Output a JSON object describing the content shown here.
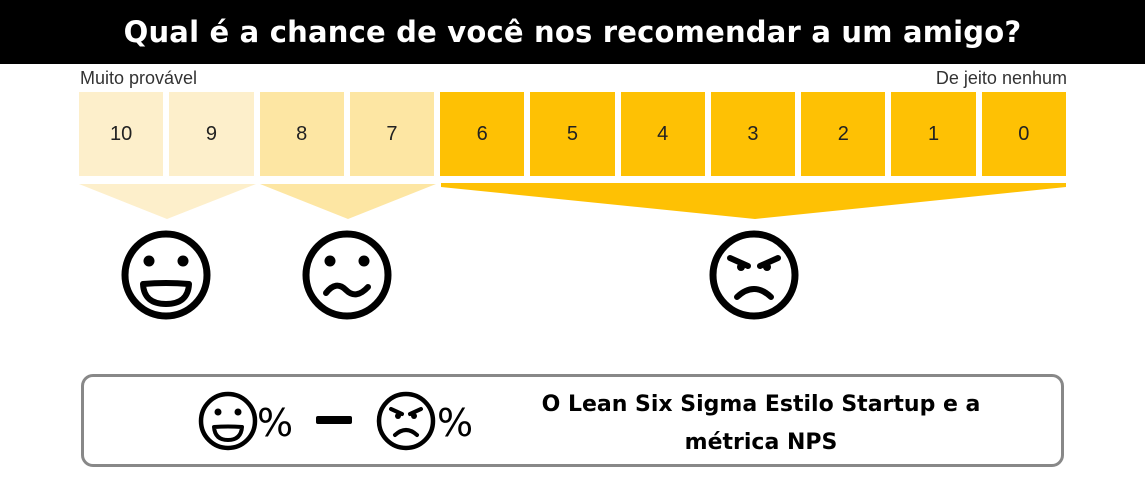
{
  "header": {
    "title": "Qual é a chance de você nos recomendar a um amigo?"
  },
  "scale": {
    "left_label": "Muito provável",
    "right_label": "De jeito nenhum",
    "cells": [
      "10",
      "9",
      "8",
      "7",
      "6",
      "5",
      "4",
      "3",
      "2",
      "1",
      "0"
    ]
  },
  "groups": [
    {
      "name": "promoters",
      "icon": "happy-face-icon",
      "color": "#fdefcb"
    },
    {
      "name": "passives",
      "icon": "wavy-face-icon",
      "color": "#fde6a3"
    },
    {
      "name": "detractors",
      "icon": "angry-face-icon",
      "color": "#fec104"
    }
  ],
  "formula": {
    "percent_symbol_1": "%",
    "percent_symbol_2": "%",
    "caption_line_1": "O Lean Six Sigma Estilo Startup e a",
    "caption_line_2": "métrica NPS"
  }
}
